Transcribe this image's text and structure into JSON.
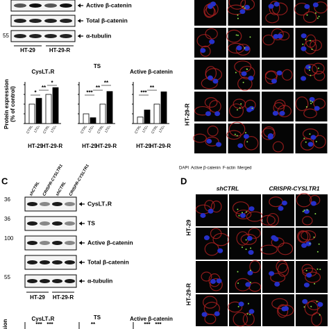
{
  "panel_a": {
    "blots": [
      {
        "label": "Active β-catenin"
      },
      {
        "label": "Total β-catenin"
      },
      {
        "marker": 55,
        "label": "α-tubulin"
      }
    ],
    "groups": [
      "HT-29",
      "HT-29-R"
    ]
  },
  "chart_data": [
    {
      "type": "bar",
      "title": "CysLT₁R",
      "y_label": [
        "Protein expression",
        "(% of control)"
      ],
      "categories": [
        "CTRL",
        "LTD₄",
        "CTRL",
        "LTD₄"
      ],
      "groups": [
        "HT-29",
        "HT-29-R"
      ],
      "values": [
        100,
        130,
        150,
        185
      ],
      "colors": [
        "#ffffff",
        "#000000",
        "#ffffff",
        "#000000"
      ],
      "ylim": [
        0,
        200
      ],
      "annotations": [
        "*",
        "**",
        "*"
      ]
    },
    {
      "type": "bar",
      "title": "TS",
      "categories": [
        "CTRL",
        "LTD₄",
        "CTRL",
        "LTD₄"
      ],
      "groups": [
        "HT-29",
        "HT-29-R"
      ],
      "values": [
        100,
        60,
        200,
        330
      ],
      "colors": [
        "#ffffff",
        "#000000",
        "#ffffff",
        "#000000"
      ],
      "ylim": [
        0,
        400
      ],
      "annotations": [
        "***",
        "**",
        "**"
      ]
    },
    {
      "type": "bar",
      "title": "Active β-catenin",
      "categories": [
        "CTRL",
        "LTD₄",
        "CTRL",
        "LTD₄"
      ],
      "groups": [
        "HT-29",
        "HT-29-R"
      ],
      "values": [
        100,
        210,
        300,
        490
      ],
      "colors": [
        "#ffffff",
        "#000000",
        "#ffffff",
        "#000000"
      ],
      "ylim": [
        0,
        600
      ],
      "annotations": [
        "***",
        "**"
      ]
    }
  ],
  "panel_b": {
    "row_label": "HT-29-R",
    "legend": [
      {
        "text": "DAPI",
        "color": "#2233dd"
      },
      {
        "text": "Active β-catenin",
        "color": "#66cc22"
      },
      {
        "text": "F-actin",
        "color": "#dd2222"
      },
      {
        "text": "Merged",
        "color": "#cc33cc"
      }
    ]
  },
  "panel_c": {
    "letter": "C",
    "lanes": [
      "shCTRL",
      "CRISPR-CYSLTR1",
      "shCTRL",
      "CRISPR-CYSLTR1"
    ],
    "blots": [
      {
        "marker": 36,
        "label": "CysLT₁R"
      },
      {
        "marker": 36,
        "label": "TS"
      },
      {
        "marker": 100,
        "label": "Active β-catenin"
      },
      {
        "label": "Total β-catenin"
      },
      {
        "marker": 55,
        "label": "α-tubulin"
      }
    ],
    "groups": [
      "HT-29",
      "HT-29-R"
    ],
    "y_label": "sion",
    "charts": [
      {
        "title": "CysLT₁R",
        "annotations": [
          "***",
          "***"
        ]
      },
      {
        "title": "TS",
        "annotations": [
          "**"
        ]
      },
      {
        "title": "Active β-catenin",
        "annotations": [
          "***",
          "***"
        ]
      }
    ]
  },
  "panel_d": {
    "letter": "D",
    "columns": [
      "shCTRL",
      "CRISPR-CYSLTR1"
    ],
    "rows": [
      "HT-29",
      "HT-29-R"
    ]
  }
}
